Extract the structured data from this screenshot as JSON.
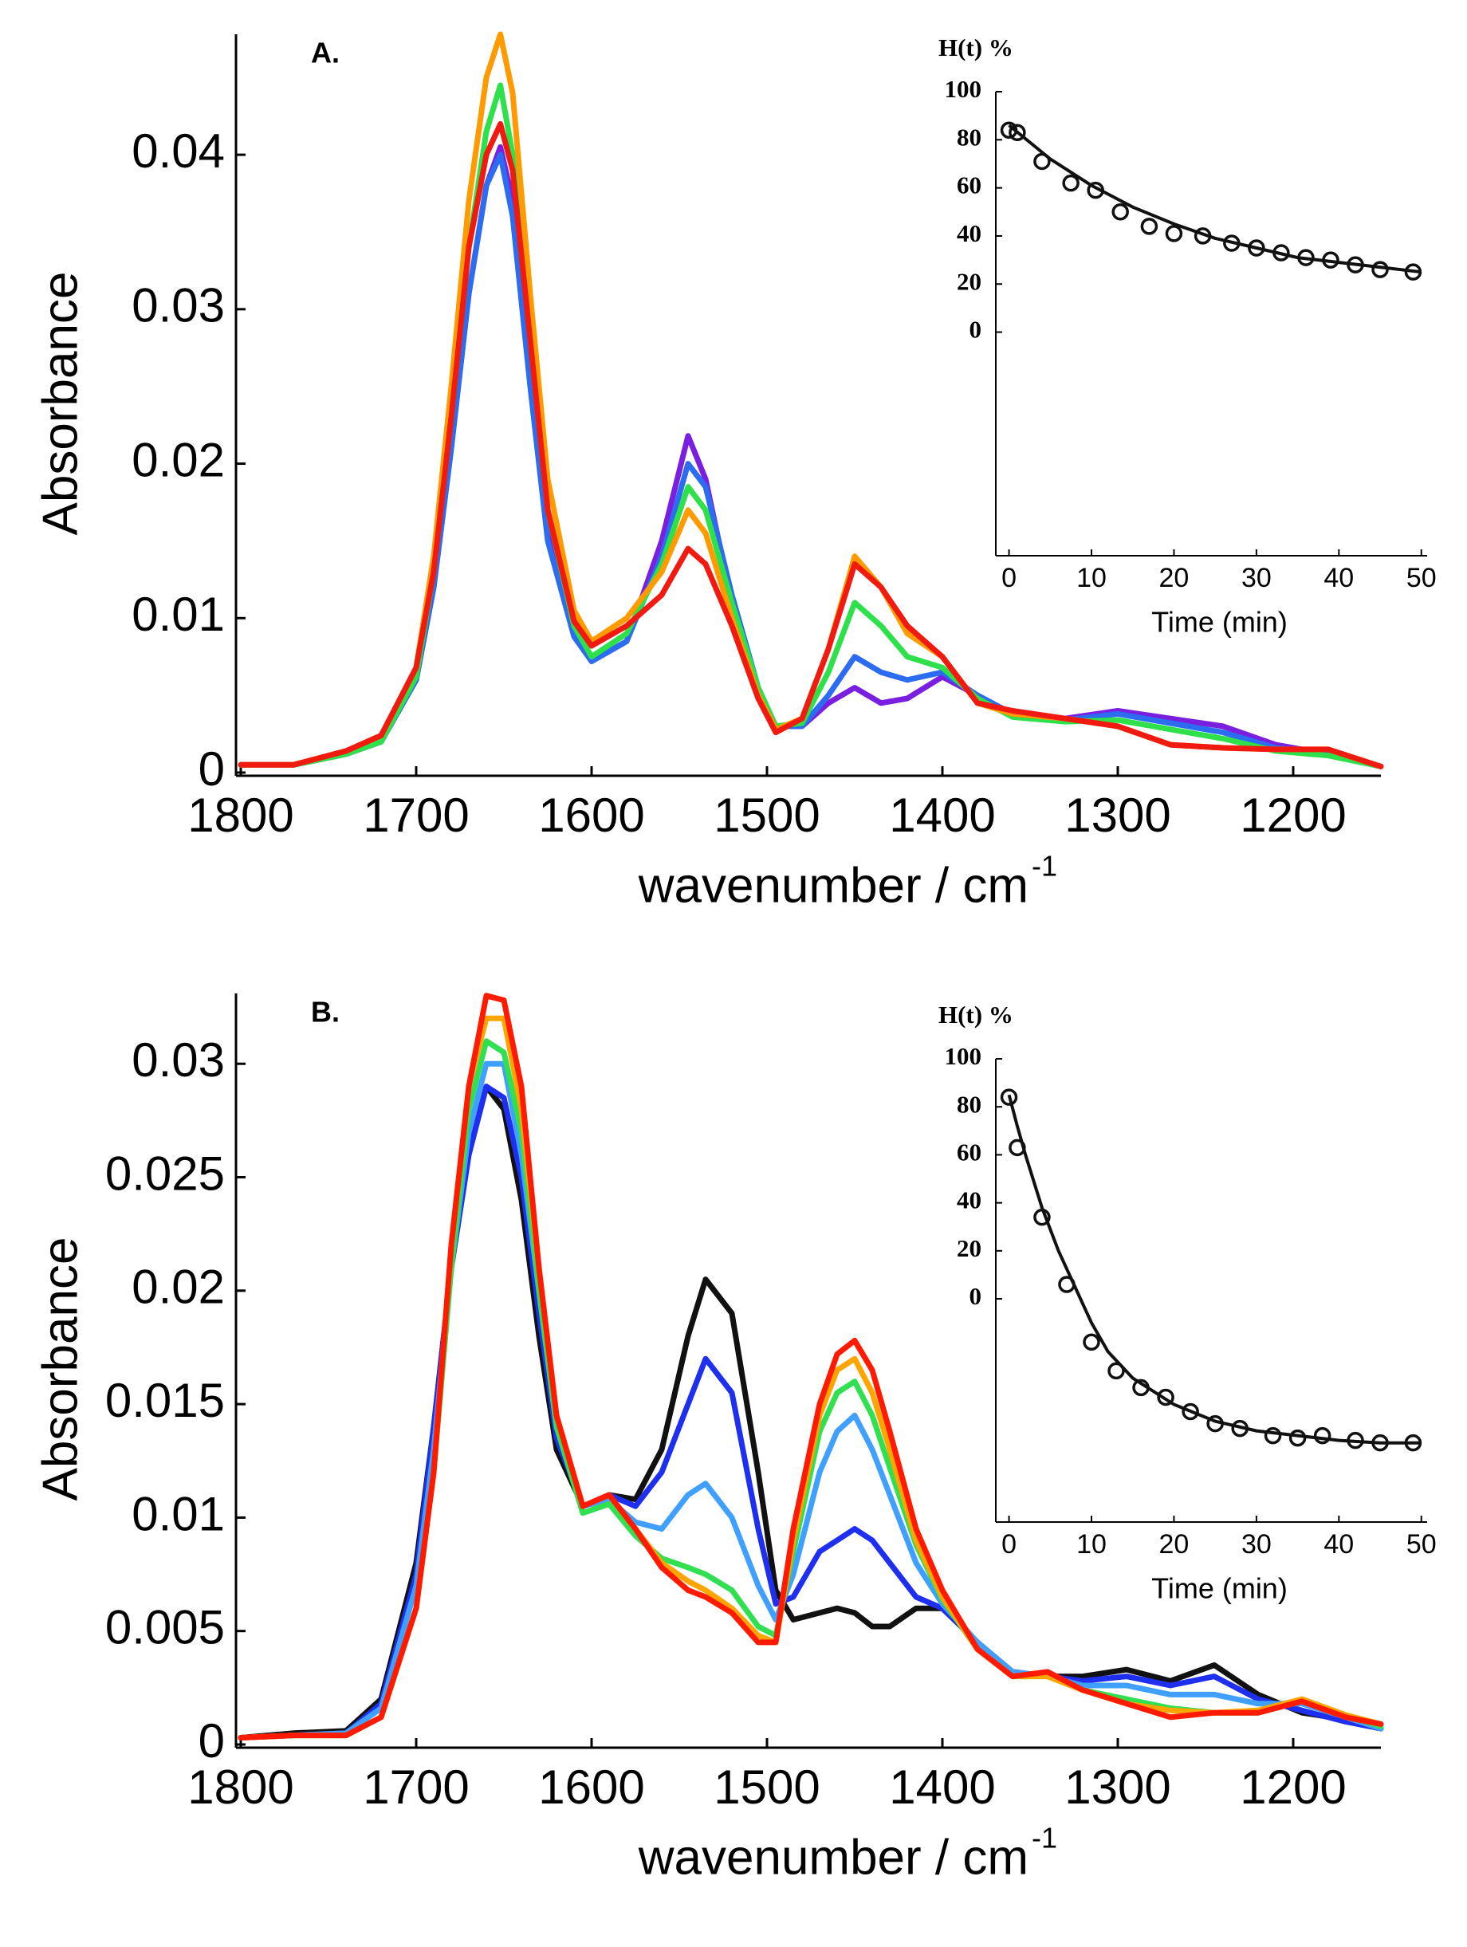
{
  "chart_data": [
    {
      "type": "line",
      "annotation": "A.",
      "ylabel": "Absorbance",
      "xlabel": "wavenumber / cm",
      "xlabel_superscript": "-1",
      "xlim": [
        1800,
        1150
      ],
      "ylim": [
        0,
        0.0478
      ],
      "xticks": [
        1800,
        1700,
        1600,
        1500,
        1400,
        1300,
        1200
      ],
      "yticks": [
        0,
        0.01,
        0.02,
        0.03,
        0.04
      ],
      "x": [
        1800,
        1770,
        1740,
        1720,
        1700,
        1690,
        1680,
        1670,
        1660,
        1652,
        1645,
        1635,
        1625,
        1610,
        1600,
        1580,
        1560,
        1545,
        1535,
        1520,
        1505,
        1495,
        1480,
        1465,
        1450,
        1435,
        1420,
        1400,
        1380,
        1360,
        1330,
        1300,
        1270,
        1240,
        1210,
        1180,
        1150
      ],
      "series": [
        {
          "color": "#7a1fe0",
          "values": [
            0.0005,
            0.0005,
            0.0012,
            0.002,
            0.006,
            0.012,
            0.021,
            0.031,
            0.038,
            0.0405,
            0.037,
            0.026,
            0.016,
            0.009,
            0.0072,
            0.0085,
            0.015,
            0.0218,
            0.019,
            0.011,
            0.005,
            0.003,
            0.003,
            0.0045,
            0.0055,
            0.0045,
            0.0048,
            0.0062,
            0.005,
            0.0038,
            0.0035,
            0.004,
            0.0035,
            0.003,
            0.0018,
            0.0012,
            0.0004
          ]
        },
        {
          "color": "#2b6cf0",
          "values": [
            0.0005,
            0.0005,
            0.0012,
            0.002,
            0.006,
            0.012,
            0.021,
            0.031,
            0.038,
            0.04,
            0.036,
            0.025,
            0.015,
            0.0088,
            0.0072,
            0.0085,
            0.014,
            0.02,
            0.0185,
            0.0115,
            0.0055,
            0.003,
            0.003,
            0.005,
            0.0075,
            0.0065,
            0.006,
            0.0065,
            0.005,
            0.0038,
            0.0034,
            0.0038,
            0.0032,
            0.0026,
            0.0016,
            0.0012,
            0.0004
          ]
        },
        {
          "color": "#2ee04a",
          "values": [
            0.0005,
            0.0005,
            0.0012,
            0.002,
            0.0062,
            0.013,
            0.023,
            0.034,
            0.0415,
            0.0445,
            0.04,
            0.028,
            0.017,
            0.0095,
            0.0075,
            0.009,
            0.0135,
            0.0185,
            0.017,
            0.011,
            0.0055,
            0.003,
            0.0032,
            0.0065,
            0.011,
            0.0095,
            0.0075,
            0.0068,
            0.0048,
            0.0036,
            0.0033,
            0.0034,
            0.0028,
            0.0022,
            0.0014,
            0.0011,
            0.0004
          ]
        },
        {
          "color": "#ff9a00",
          "values": [
            0.0005,
            0.0005,
            0.0014,
            0.0024,
            0.0068,
            0.014,
            0.025,
            0.037,
            0.045,
            0.0478,
            0.044,
            0.031,
            0.019,
            0.0105,
            0.0085,
            0.01,
            0.013,
            0.017,
            0.0155,
            0.01,
            0.005,
            0.0028,
            0.0035,
            0.008,
            0.014,
            0.012,
            0.009,
            0.0075,
            0.0045,
            0.0038,
            0.0035,
            0.003,
            0.0018,
            0.0016,
            0.0015,
            0.0015,
            0.0004
          ]
        },
        {
          "color": "#f01a10",
          "values": [
            0.0005,
            0.0005,
            0.0014,
            0.0024,
            0.0068,
            0.013,
            0.023,
            0.034,
            0.04,
            0.042,
            0.039,
            0.028,
            0.017,
            0.0098,
            0.0082,
            0.0095,
            0.0115,
            0.0145,
            0.0135,
            0.0095,
            0.0048,
            0.0026,
            0.0035,
            0.008,
            0.0135,
            0.012,
            0.0095,
            0.0075,
            0.0045,
            0.004,
            0.0035,
            0.003,
            0.0018,
            0.0016,
            0.0015,
            0.0015,
            0.0004
          ]
        }
      ]
    },
    {
      "type": "scatter",
      "ylabel": "H(t) %",
      "xlabel": "Time (min)",
      "xlim": [
        -1.6,
        50.7
      ],
      "ylim": [
        -93,
        100
      ],
      "xticks": [
        0,
        10,
        20,
        30,
        40,
        50
      ],
      "yticks": [
        0,
        20,
        40,
        60,
        80,
        100
      ],
      "series": [
        {
          "mode": "markers",
          "color": "#111111",
          "x": [
            0,
            1,
            4,
            7.5,
            10.5,
            13.5,
            17,
            20,
            23.5,
            27,
            30,
            33,
            36,
            39,
            42,
            45,
            49
          ],
          "values": [
            84,
            83,
            71,
            62,
            59,
            50,
            44,
            41,
            40,
            37,
            35,
            33,
            31,
            30,
            28,
            26,
            25
          ]
        },
        {
          "mode": "line",
          "color": "#111111",
          "x": [
            0,
            5,
            10,
            15,
            20,
            25,
            30,
            35,
            40,
            45,
            50
          ],
          "values": [
            86,
            72,
            61,
            52,
            45,
            39,
            35,
            31,
            29,
            27,
            25
          ]
        }
      ]
    },
    {
      "type": "line",
      "annotation": "B.",
      "ylabel": "Absorbance",
      "xlabel": "wavenumber / cm",
      "xlabel_superscript": "-1",
      "xlim": [
        1800,
        1150
      ],
      "ylim": [
        0,
        0.0331
      ],
      "xticks": [
        1800,
        1700,
        1600,
        1500,
        1400,
        1300,
        1200
      ],
      "yticks": [
        0,
        0.005,
        0.01,
        0.015,
        0.02,
        0.025,
        0.03
      ],
      "x": [
        1800,
        1770,
        1740,
        1720,
        1700,
        1690,
        1680,
        1670,
        1660,
        1650,
        1640,
        1630,
        1620,
        1605,
        1590,
        1575,
        1560,
        1545,
        1535,
        1520,
        1505,
        1495,
        1485,
        1470,
        1460,
        1450,
        1440,
        1430,
        1415,
        1400,
        1380,
        1360,
        1340,
        1320,
        1295,
        1270,
        1245,
        1220,
        1195,
        1170,
        1150
      ],
      "series": [
        {
          "color": "#111111",
          "values": [
            0.0003,
            0.0005,
            0.0006,
            0.002,
            0.008,
            0.014,
            0.021,
            0.026,
            0.029,
            0.028,
            0.024,
            0.018,
            0.013,
            0.0105,
            0.011,
            0.0108,
            0.013,
            0.018,
            0.0205,
            0.019,
            0.012,
            0.0068,
            0.0055,
            0.0058,
            0.006,
            0.0058,
            0.0052,
            0.0052,
            0.006,
            0.006,
            0.0045,
            0.0032,
            0.003,
            0.003,
            0.0033,
            0.0028,
            0.0035,
            0.0022,
            0.0014,
            0.0011,
            0.0007
          ]
        },
        {
          "color": "#1f2ff0",
          "values": [
            0.0003,
            0.0004,
            0.0005,
            0.0018,
            0.0075,
            0.014,
            0.021,
            0.026,
            0.029,
            0.0285,
            0.025,
            0.019,
            0.0135,
            0.0105,
            0.011,
            0.0105,
            0.012,
            0.015,
            0.017,
            0.0155,
            0.0095,
            0.0062,
            0.0065,
            0.0085,
            0.009,
            0.0095,
            0.009,
            0.008,
            0.0065,
            0.006,
            0.0045,
            0.0032,
            0.003,
            0.0028,
            0.003,
            0.0026,
            0.003,
            0.002,
            0.0015,
            0.001,
            0.0007
          ]
        },
        {
          "color": "#3fa0ff",
          "values": [
            0.0003,
            0.0004,
            0.0005,
            0.0016,
            0.007,
            0.013,
            0.021,
            0.027,
            0.03,
            0.03,
            0.026,
            0.02,
            0.014,
            0.0105,
            0.0108,
            0.0098,
            0.0095,
            0.011,
            0.0115,
            0.01,
            0.007,
            0.0055,
            0.0075,
            0.012,
            0.0138,
            0.0145,
            0.013,
            0.011,
            0.008,
            0.0062,
            0.0045,
            0.0032,
            0.003,
            0.0026,
            0.0026,
            0.0022,
            0.0022,
            0.0018,
            0.0018,
            0.0012,
            0.0007
          ]
        },
        {
          "color": "#30e050",
          "values": [
            0.0003,
            0.0004,
            0.0004,
            0.0012,
            0.006,
            0.012,
            0.021,
            0.028,
            0.031,
            0.0305,
            0.027,
            0.02,
            0.014,
            0.0102,
            0.0106,
            0.0092,
            0.0082,
            0.0078,
            0.0075,
            0.0068,
            0.0052,
            0.0048,
            0.0085,
            0.0138,
            0.0155,
            0.016,
            0.0145,
            0.0122,
            0.0088,
            0.0064,
            0.0042,
            0.003,
            0.003,
            0.0024,
            0.002,
            0.0016,
            0.0014,
            0.0014,
            0.002,
            0.0013,
            0.0008
          ]
        },
        {
          "color": "#ffa500",
          "values": [
            0.0003,
            0.0004,
            0.0004,
            0.0012,
            0.006,
            0.012,
            0.022,
            0.029,
            0.032,
            0.032,
            0.028,
            0.021,
            0.0145,
            0.0105,
            0.011,
            0.0095,
            0.008,
            0.0072,
            0.0068,
            0.006,
            0.0048,
            0.0045,
            0.009,
            0.0145,
            0.0165,
            0.017,
            0.0155,
            0.013,
            0.009,
            0.0065,
            0.0042,
            0.003,
            0.003,
            0.0024,
            0.0018,
            0.0015,
            0.0014,
            0.0015,
            0.002,
            0.0013,
            0.0009
          ]
        },
        {
          "color": "#ff1a00",
          "values": [
            0.0003,
            0.0004,
            0.0004,
            0.0012,
            0.006,
            0.012,
            0.022,
            0.029,
            0.033,
            0.0328,
            0.029,
            0.021,
            0.0145,
            0.0105,
            0.011,
            0.0095,
            0.0078,
            0.0068,
            0.0065,
            0.0058,
            0.0045,
            0.0045,
            0.0095,
            0.015,
            0.0172,
            0.0178,
            0.0165,
            0.0138,
            0.0095,
            0.0068,
            0.0042,
            0.003,
            0.0032,
            0.0024,
            0.0018,
            0.0012,
            0.0014,
            0.0014,
            0.0019,
            0.0012,
            0.0009
          ]
        }
      ]
    },
    {
      "type": "scatter",
      "ylabel": "H(t) %",
      "xlabel": "Time (min)",
      "xlim": [
        -1.6,
        50.7
      ],
      "ylim": [
        -93,
        100
      ],
      "xticks": [
        0,
        10,
        20,
        30,
        40,
        50
      ],
      "yticks": [
        0,
        20,
        40,
        60,
        80,
        100
      ],
      "series": [
        {
          "mode": "markers",
          "color": "#111111",
          "x": [
            0,
            1,
            4,
            7,
            10,
            13,
            16,
            19,
            22,
            25,
            28,
            32,
            35,
            38,
            42,
            45,
            49
          ],
          "values": [
            84,
            63,
            34,
            6,
            -18,
            -30,
            -37,
            -41,
            -47,
            -52,
            -54,
            -57,
            -58,
            -57,
            -59,
            -60,
            -60
          ]
        },
        {
          "mode": "line",
          "color": "#111111",
          "x": [
            0,
            1,
            2,
            4,
            6,
            8,
            10,
            12,
            15,
            20,
            25,
            30,
            35,
            40,
            45,
            50
          ],
          "values": [
            85,
            72,
            60,
            38,
            20,
            5,
            -10,
            -22,
            -33,
            -44,
            -51,
            -55,
            -57,
            -59,
            -60,
            -60
          ]
        }
      ]
    }
  ]
}
